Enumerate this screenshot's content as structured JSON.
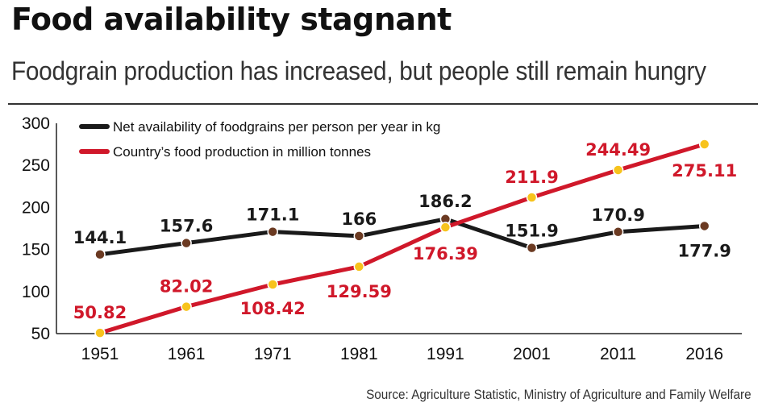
{
  "title": "Food availability stagnant",
  "subtitle": "Foodgrain production has increased, but people still remain hungry",
  "source": "Source: Agriculture Statistic, Ministry of Agriculture and Family Welfare",
  "colors": {
    "net": "#1a1a1a",
    "prod": "#d0182a",
    "net_marker": "#6b3a22",
    "prod_marker": "#f7c31c"
  },
  "chart_data": {
    "type": "line",
    "categories": [
      "1951",
      "1961",
      "1971",
      "1981",
      "1991",
      "2001",
      "2011",
      "2016"
    ],
    "yticks": [
      "300",
      "250",
      "200",
      "150",
      "100",
      "50"
    ],
    "ylim": [
      50,
      300
    ],
    "grid": false,
    "legend_position": "top-left",
    "series": [
      {
        "name": "Net availability of foodgrains per person per year in kg",
        "values": [
          144.1,
          157.6,
          171.1,
          166,
          186.2,
          151.9,
          170.9,
          177.9
        ],
        "labels": [
          "144.1",
          "157.6",
          "171.1",
          "166",
          "186.2",
          "151.9",
          "170.9",
          "177.9"
        ]
      },
      {
        "name": "Country’s food production in million tonnes",
        "values": [
          50.82,
          82.02,
          108.42,
          129.59,
          176.39,
          211.9,
          244.49,
          275.11
        ],
        "labels": [
          "50.82",
          "82.02",
          "108.42",
          "129.59",
          "176.39",
          "211.9",
          "244.49",
          "275.11"
        ]
      }
    ]
  }
}
